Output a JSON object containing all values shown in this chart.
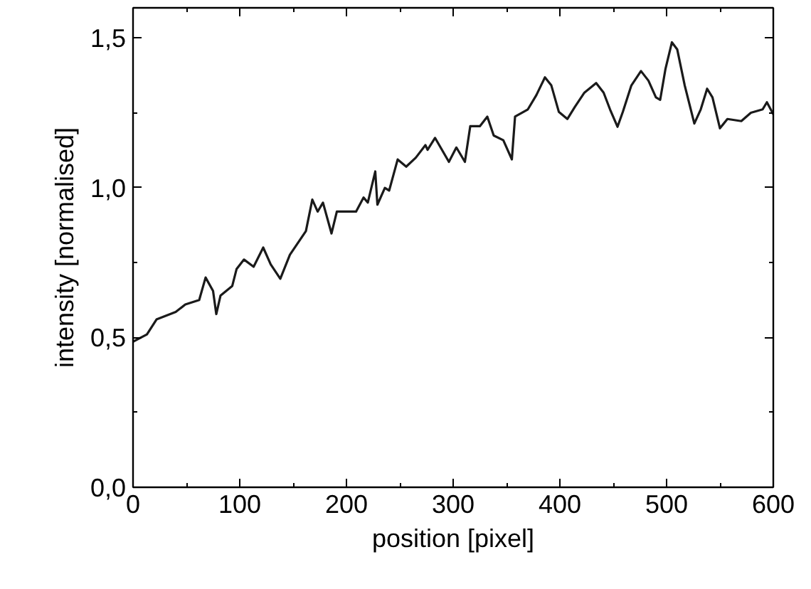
{
  "chart_data": {
    "type": "line",
    "xlabel": "position [pixel]",
    "ylabel": "intensity [normalised]",
    "xlim": [
      0,
      600
    ],
    "ylim": [
      0,
      1.6
    ],
    "xticks": [
      0,
      {
        "value": 50,
        "label": null
      },
      100,
      {
        "value": 150,
        "label": null
      },
      200,
      {
        "value": 250,
        "label": null
      },
      300,
      {
        "value": 350,
        "label": null
      },
      400,
      {
        "value": 450,
        "label": null
      },
      500,
      {
        "value": 550,
        "label": null
      },
      600
    ],
    "yticks": [
      {
        "value": 0,
        "label": "0,0"
      },
      {
        "value": 0.25,
        "label": null
      },
      {
        "value": 0.5,
        "label": "0,5"
      },
      {
        "value": 0.75,
        "label": null
      },
      {
        "value": 1.0,
        "label": "1,0"
      },
      {
        "value": 1.25,
        "label": null
      },
      {
        "value": 1.5,
        "label": "1,5"
      }
    ],
    "grid": false,
    "marker": "none",
    "line_style": "solid",
    "series": [
      {
        "color": "#1a1a1a",
        "x": [
          0,
          13,
          22,
          40,
          49,
          62,
          68,
          75,
          78,
          82,
          93,
          97,
          104,
          113,
          122,
          129,
          138,
          147,
          162,
          168,
          173,
          178,
          186,
          191,
          209,
          216,
          220,
          227,
          229,
          236,
          240,
          248,
          256,
          265,
          274,
          276,
          283,
          296,
          303,
          311,
          316,
          325,
          332,
          338,
          347,
          355,
          358,
          370,
          378,
          386,
          392,
          399,
          407,
          414,
          423,
          434,
          441,
          447,
          454,
          459,
          467,
          476,
          483,
          490,
          494,
          499,
          505,
          510,
          517,
          526,
          532,
          538,
          543,
          550,
          557,
          570,
          579,
          590,
          594,
          600
        ],
        "values": [
          0.486,
          0.51,
          0.56,
          0.585,
          0.61,
          0.625,
          0.7,
          0.655,
          0.578,
          0.64,
          0.672,
          0.728,
          0.76,
          0.736,
          0.8,
          0.744,
          0.696,
          0.776,
          0.855,
          0.96,
          0.92,
          0.95,
          0.847,
          0.92,
          0.92,
          0.967,
          0.95,
          1.054,
          0.943,
          0.999,
          0.99,
          1.094,
          1.07,
          1.1,
          1.142,
          1.126,
          1.166,
          1.086,
          1.134,
          1.086,
          1.205,
          1.205,
          1.237,
          1.174,
          1.158,
          1.094,
          1.237,
          1.261,
          1.309,
          1.368,
          1.341,
          1.253,
          1.229,
          1.269,
          1.317,
          1.349,
          1.317,
          1.261,
          1.203,
          1.253,
          1.341,
          1.389,
          1.357,
          1.301,
          1.293,
          1.397,
          1.485,
          1.461,
          1.341,
          1.214,
          1.261,
          1.33,
          1.301,
          1.198,
          1.229,
          1.222,
          1.25,
          1.261,
          1.285,
          1.245
        ]
      }
    ]
  }
}
